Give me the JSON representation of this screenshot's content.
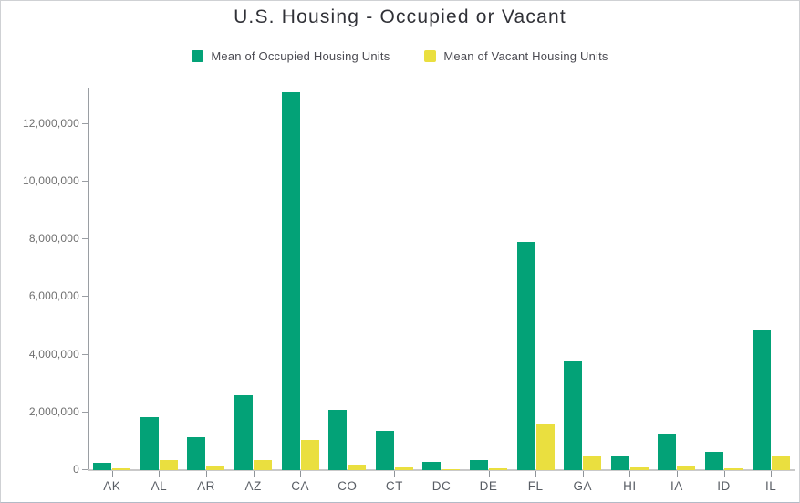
{
  "title": "U.S. Housing - Occupied or Vacant",
  "colors": {
    "occupied": "#03a277",
    "vacant": "#eadf3f",
    "axis_line": "#9a9ea3",
    "baseline": "#c9c9c9",
    "title_text": "#303137",
    "legend_text": "#4b4b52",
    "y_label_text": "#6f6f6f",
    "x_label_text": "#585d64"
  },
  "legend": {
    "items": [
      {
        "label": "Mean of Occupied Housing Units",
        "series": "occupied",
        "color": "#03a277"
      },
      {
        "label": "Mean of Vacant Housing Units",
        "series": "vacant",
        "color": "#eadf3f"
      }
    ]
  },
  "chart_data": {
    "type": "bar",
    "title": "U.S. Housing - Occupied or Vacant",
    "categories": [
      "AK",
      "AL",
      "AR",
      "AZ",
      "CA",
      "CO",
      "CT",
      "DC",
      "DE",
      "FL",
      "GA",
      "HI",
      "IA",
      "ID",
      "IL"
    ],
    "series": [
      {
        "name": "Mean of Occupied Housing Units",
        "color": "#03a277",
        "values": [
          250000,
          1850000,
          1130000,
          2600000,
          13100000,
          2090000,
          1360000,
          270000,
          350000,
          7900000,
          3790000,
          460000,
          1260000,
          620000,
          4840000
        ]
      },
      {
        "name": "Mean of Vacant Housing Units",
        "color": "#eadf3f",
        "values": [
          55000,
          350000,
          150000,
          350000,
          1060000,
          180000,
          95000,
          30000,
          70000,
          1590000,
          470000,
          80000,
          120000,
          75000,
          460000
        ]
      }
    ],
    "xlabel": "",
    "ylabel": "",
    "ylim": [
      0,
      13230000
    ],
    "yticks": [
      0,
      2000000,
      4000000,
      6000000,
      8000000,
      10000000,
      12000000
    ],
    "ytick_labels": [
      "0",
      "2,000,000",
      "4,000,000",
      "6,000,000",
      "8,000,000",
      "10,000,000",
      "12,000,000"
    ],
    "grid": false,
    "legend_position": "top-center"
  }
}
